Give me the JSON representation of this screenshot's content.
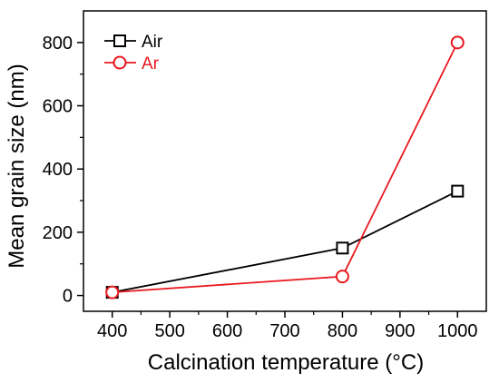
{
  "chart_data": {
    "type": "line",
    "title": "",
    "xlabel": "Calcination temperature (°C)",
    "ylabel": "Mean grain size (nm)",
    "xlim": [
      350,
      1050
    ],
    "ylim": [
      -50,
      900
    ],
    "xticks": [
      400,
      500,
      600,
      700,
      800,
      900,
      1000
    ],
    "yticks": [
      0,
      200,
      400,
      600,
      800
    ],
    "legend_position": "top-left",
    "grid": false,
    "series": [
      {
        "name": "Air",
        "color": "#000000",
        "marker": "square",
        "x": [
          400,
          800,
          1000
        ],
        "y": [
          10,
          150,
          330
        ]
      },
      {
        "name": "Ar",
        "color": "#e8191e",
        "marker": "circle",
        "x": [
          400,
          800,
          1000
        ],
        "y": [
          10,
          60,
          800
        ]
      }
    ]
  }
}
